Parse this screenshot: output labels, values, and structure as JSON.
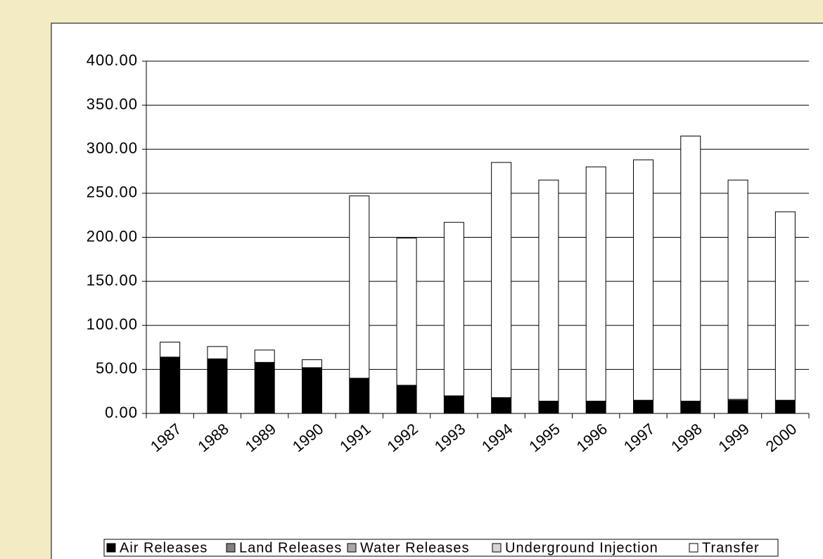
{
  "chart_data": {
    "type": "bar",
    "stacked": true,
    "categories": [
      "1987",
      "1988",
      "1989",
      "1990",
      "1991",
      "1992",
      "1993",
      "1994",
      "1995",
      "1996",
      "1997",
      "1998",
      "1999",
      "2000"
    ],
    "series": [
      {
        "name": "Air Releases",
        "color": "#000000",
        "values": [
          64,
          62,
          58,
          52,
          40,
          32,
          20,
          18,
          14,
          14,
          15,
          14,
          14,
          15
        ]
      },
      {
        "name": "Land Releases",
        "color": "#808080",
        "values": [
          0,
          0,
          0,
          0,
          0,
          0,
          0,
          0,
          0,
          0,
          0,
          0,
          1,
          0
        ]
      },
      {
        "name": "Water Releases",
        "color": "#a6a6a6",
        "values": [
          0,
          0,
          0,
          0,
          0,
          0,
          0,
          0,
          0,
          0,
          0,
          0,
          0,
          0
        ]
      },
      {
        "name": "Underground Injection",
        "color": "#d4d4d4",
        "values": [
          0,
          0,
          0,
          0,
          0,
          0,
          0,
          0,
          0,
          0,
          0,
          0,
          1,
          0
        ]
      },
      {
        "name": "Transfer",
        "color": "#ffffff",
        "values": [
          17,
          14,
          14,
          9,
          207,
          167,
          197,
          267,
          251,
          266,
          273,
          301,
          249,
          214
        ]
      }
    ],
    "ylim": [
      0,
      400
    ],
    "yticks": [
      {
        "value": 0,
        "label": "0.00"
      },
      {
        "value": 50,
        "label": "50.00"
      },
      {
        "value": 100,
        "label": "100.00"
      },
      {
        "value": 150,
        "label": "150.00"
      },
      {
        "value": 200,
        "label": "200.00"
      },
      {
        "value": 250,
        "label": "250.00"
      },
      {
        "value": 300,
        "label": "300.00"
      },
      {
        "value": 350,
        "label": "350.00"
      },
      {
        "value": 400,
        "label": "400.00"
      }
    ],
    "grid": true
  }
}
